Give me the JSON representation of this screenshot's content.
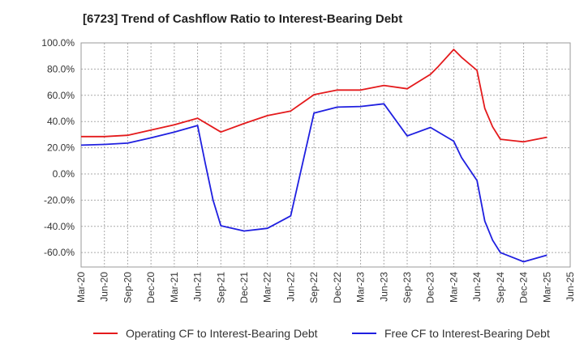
{
  "chart_data": {
    "type": "line",
    "title": "[6723]  Trend of Cashflow Ratio to Interest-Bearing Debt",
    "x_ticks": [
      "Mar-20",
      "Jun-20",
      "Sep-20",
      "Dec-20",
      "Mar-21",
      "Jun-21",
      "Sep-21",
      "Dec-21",
      "Mar-22",
      "Jun-22",
      "Sep-22",
      "Dec-22",
      "Mar-23",
      "Jun-23",
      "Sep-23",
      "Dec-23",
      "Mar-24",
      "Jun-24",
      "Sep-24",
      "Dec-24",
      "Mar-25",
      "Jun-25"
    ],
    "y_ticks": [
      "100.0%",
      "80.0%",
      "60.0%",
      "40.0%",
      "20.0%",
      "0.0%",
      "-20.0%",
      "-40.0%",
      "-60.0%"
    ],
    "ylim": [
      -71,
      100
    ],
    "grid": true,
    "legend_position": "bottom",
    "series": [
      {
        "name": "Operating CF to Interest-Bearing Debt",
        "color": "#e41a1c",
        "values": [
          [
            "Mar-20",
            28.5
          ],
          [
            "Jun-20",
            28.5
          ],
          [
            "Sep-20",
            29.5
          ],
          [
            "Dec-20",
            33.5
          ],
          [
            "Mar-21",
            37.5
          ],
          [
            "Jun-21",
            42.5
          ],
          [
            "Sep-21",
            32.0
          ],
          [
            "Dec-21",
            38.5
          ],
          [
            "Mar-22",
            44.5
          ],
          [
            "Jun-22",
            48.0
          ],
          [
            "Sep-22",
            60.5
          ],
          [
            "Dec-22",
            64.0
          ],
          [
            "Mar-23",
            64.0
          ],
          [
            "Jun-23",
            67.5
          ],
          [
            "Sep-23",
            65.0
          ],
          [
            "Dec-23",
            76.0
          ],
          [
            "Jan-24",
            82.0
          ],
          [
            "Mar-24",
            95.0
          ],
          [
            "Apr-24",
            89.0
          ],
          [
            "Jun-24",
            79.0
          ],
          [
            "Jul-24",
            50.0
          ],
          [
            "Aug-24",
            36.0
          ],
          [
            "Sep-24",
            26.5
          ],
          [
            "Dec-24",
            24.5
          ],
          [
            "Mar-25",
            28.0
          ]
        ]
      },
      {
        "name": "Free CF to Interest-Bearing Debt",
        "color": "#1f1fe0",
        "values": [
          [
            "Mar-20",
            22.0
          ],
          [
            "Jun-20",
            22.5
          ],
          [
            "Sep-20",
            23.5
          ],
          [
            "Dec-20",
            27.5
          ],
          [
            "Mar-21",
            32.0
          ],
          [
            "Jun-21",
            37.0
          ],
          [
            "Jul-21",
            8.0
          ],
          [
            "Aug-21",
            -20.0
          ],
          [
            "Sep-21",
            -39.5
          ],
          [
            "Dec-21",
            -43.5
          ],
          [
            "Mar-22",
            -41.5
          ],
          [
            "Jun-22",
            -32.0
          ],
          [
            "Sep-22",
            46.5
          ],
          [
            "Dec-22",
            51.0
          ],
          [
            "Mar-23",
            51.5
          ],
          [
            "Jun-23",
            53.5
          ],
          [
            "Sep-23",
            29.0
          ],
          [
            "Dec-23",
            35.5
          ],
          [
            "Mar-24",
            25.0
          ],
          [
            "Apr-24",
            12.5
          ],
          [
            "Jun-24",
            -5.0
          ],
          [
            "Jul-24",
            -36.0
          ],
          [
            "Aug-24",
            -50.5
          ],
          [
            "Sep-24",
            -60.0
          ],
          [
            "Dec-24",
            -67.0
          ],
          [
            "Mar-25",
            -62.0
          ]
        ]
      }
    ]
  }
}
